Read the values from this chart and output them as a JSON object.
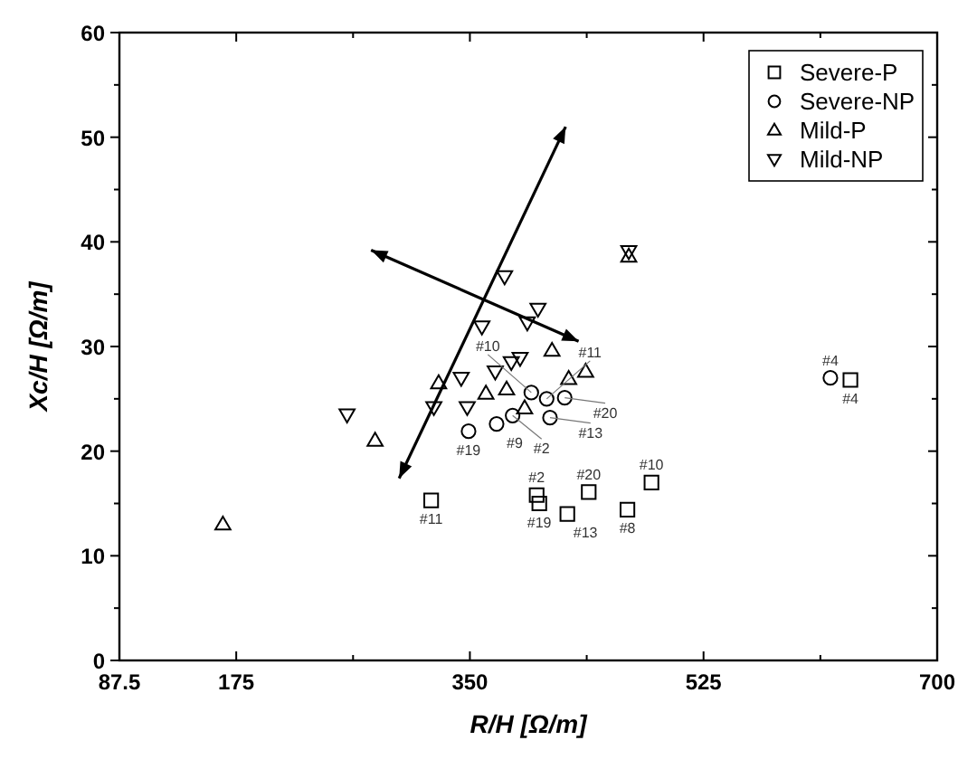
{
  "chart_data": {
    "type": "scatter",
    "xlabel": "R/H [Ω/m]",
    "ylabel": "Xc/H [Ω/m]",
    "xlim": [
      87.5,
      700
    ],
    "ylim": [
      0,
      60
    ],
    "xticks": [
      87.5,
      175,
      {
        "value": 262.5,
        "label": null
      },
      350,
      {
        "value": 437.5,
        "label": null
      },
      525,
      {
        "value": 612.5,
        "label": null
      },
      700
    ],
    "yticks": [
      0,
      {
        "value": 5,
        "label": null
      },
      10,
      {
        "value": 15,
        "label": null
      },
      20,
      {
        "value": 25,
        "label": null
      },
      30,
      {
        "value": 35,
        "label": null
      },
      40,
      {
        "value": 45,
        "label": null
      },
      50,
      {
        "value": 55,
        "label": null
      },
      60
    ],
    "grid": false,
    "legend": "top right",
    "series": [
      {
        "name": "Severe-P",
        "color": "#000000",
        "marker": "square",
        "x": [
          321,
          400,
          402,
          439,
          423,
          468,
          486,
          635
        ],
        "values": [
          15.3,
          15.8,
          15.0,
          16.1,
          14.0,
          14.4,
          17.0,
          26.8
        ]
      },
      {
        "name": "Severe-NP",
        "color": "#000000",
        "marker": "circle",
        "x": [
          349,
          370,
          382,
          410,
          421,
          396,
          407.5,
          620
        ],
        "values": [
          21.9,
          22.6,
          23.4,
          23.2,
          25.1,
          25.6,
          25.0,
          27.0
        ]
      },
      {
        "name": "Mild-P",
        "color": "#000000",
        "marker": "triangle",
        "x": [
          165,
          279,
          326.6,
          362,
          377.5,
          391,
          411.5,
          424,
          436.7,
          469
        ],
        "values": [
          13.0,
          21.0,
          26.5,
          25.5,
          25.9,
          24.1,
          29.6,
          26.9,
          27.6,
          38.6
        ]
      },
      {
        "name": "Mild-NP",
        "color": "#000000",
        "marker": "triangle-down",
        "x": [
          258,
          323,
          343.5,
          348,
          359,
          369,
          376,
          381,
          387.6,
          393,
          401,
          469
        ],
        "values": [
          23.5,
          24.2,
          27.0,
          24.2,
          31.9,
          27.6,
          36.7,
          28.5,
          28.9,
          32.3,
          33.6,
          39.1
        ]
      }
    ],
    "annotations": [
      {
        "text": "#11",
        "x": 321,
        "y": 15.3
      },
      {
        "text": "#2",
        "x": 400,
        "y": 15.8
      },
      {
        "text": "#19",
        "x": 402,
        "y": 15.0
      },
      {
        "text": "#20",
        "x": 439,
        "y": 16.1
      },
      {
        "text": "#13",
        "x": 423,
        "y": 14.0
      },
      {
        "text": "#8",
        "x": 468,
        "y": 14.4
      },
      {
        "text": "#10",
        "x": 486,
        "y": 17.0
      },
      {
        "text": "#4",
        "x": 635,
        "y": 26.8
      },
      {
        "text": "#19",
        "x": 349,
        "y": 21.9
      },
      {
        "text": "#9",
        "x": 370,
        "y": 22.6
      },
      {
        "text": "#2",
        "x": 382,
        "y": 23.4
      },
      {
        "text": "#13",
        "x": 410,
        "y": 23.2
      },
      {
        "text": "#20",
        "x": 421,
        "y": 25.1
      },
      {
        "text": "#10",
        "x": 396,
        "y": 25.6
      },
      {
        "text": "#11",
        "x": 407.5,
        "y": 25.0
      },
      {
        "text": "#4",
        "x": 620,
        "y": 27.0
      }
    ]
  }
}
